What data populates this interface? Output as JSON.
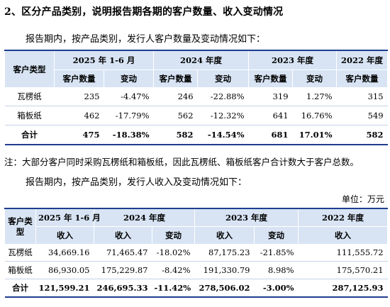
{
  "heading": "2、区分产品类别，说明报告期各期的客户数量、收入变动情况",
  "para1": "报告期内，按产品类别，发行人客户数量及变动情况如下：",
  "table1": {
    "corner": "客户类型",
    "periods": [
      "2025 年 1-6 月",
      "2024 年度",
      "2023 年度",
      "2022 年度"
    ],
    "sub_count": "客户数量",
    "sub_change": "变动",
    "rows": [
      {
        "name": "瓦楞纸",
        "c2025": "235",
        "ch2025": "-4.47%",
        "c2024": "246",
        "ch2024": "-22.88%",
        "c2023": "319",
        "ch2023": "1.27%",
        "c2022": "315"
      },
      {
        "name": "箱板纸",
        "c2025": "462",
        "ch2025": "-17.79%",
        "c2024": "562",
        "ch2024": "-12.32%",
        "c2023": "641",
        "ch2023": "16.76%",
        "c2022": "549"
      },
      {
        "name": "合计",
        "c2025": "475",
        "ch2025": "-18.38%",
        "c2024": "582",
        "ch2024": "-14.54%",
        "c2023": "681",
        "ch2023": "17.01%",
        "c2022": "582"
      }
    ]
  },
  "note": "注：大部分客户同时采购瓦楞纸和箱板纸，因此瓦楞纸、箱板纸客户合计数大于客户总数。",
  "para2": "报告期内，按产品类别，发行人收入及变动情况如下：",
  "unit": "单位：万元",
  "table2": {
    "corner": "客户类型",
    "periods": [
      "2025 年 1-6 月",
      "2024 年度",
      "2023 年度",
      "2022 年度"
    ],
    "sub_income": "收入",
    "sub_change": "变动",
    "rows": [
      {
        "name": "瓦楞纸",
        "i2025": "34,669.16",
        "i2024": "71,465.47",
        "ch2024": "-18.02%",
        "i2023": "87,175.23",
        "ch2023": "-21.85%",
        "i2022": "111,555.72"
      },
      {
        "name": "箱板纸",
        "i2025": "86,930.05",
        "i2024": "175,229.87",
        "ch2024": "-8.42%",
        "i2023": "191,330.79",
        "ch2023": "8.98%",
        "i2022": "175,570.21"
      },
      {
        "name": "合计",
        "i2025": "121,599.21",
        "i2024": "246,695.33",
        "ch2024": "-11.42%",
        "i2023": "278,506.02",
        "ch2023": "-3.00%",
        "i2022": "287,125.93"
      }
    ]
  },
  "colors": {
    "header_bg": "#d8e4f4",
    "rule": "#1e3d8f"
  }
}
